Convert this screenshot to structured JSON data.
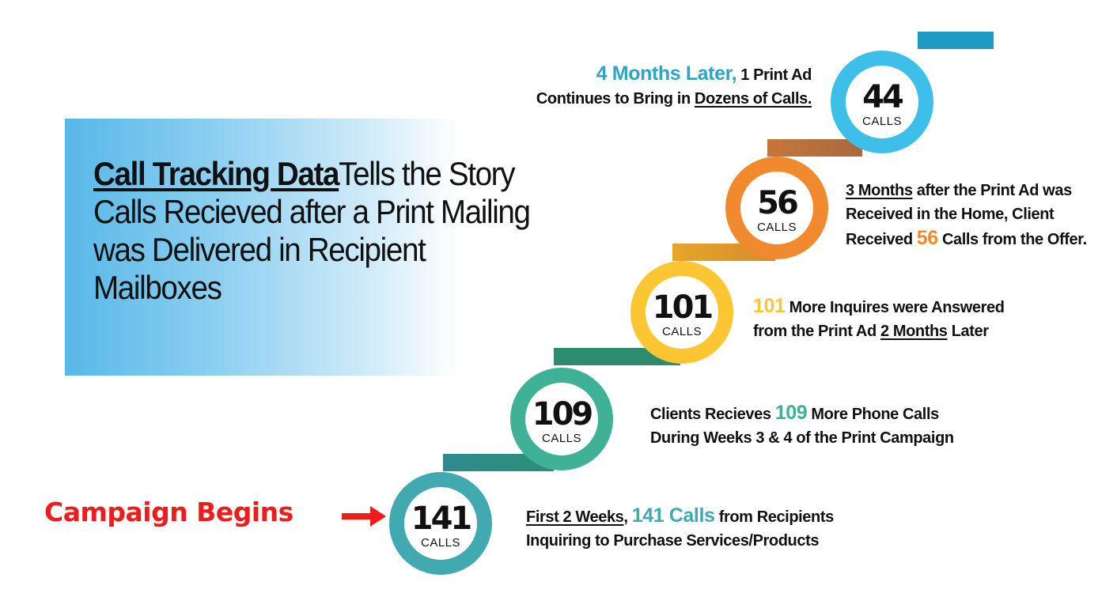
{
  "headline": {
    "emphasis": "Call Tracking Data",
    "line1_rest": "Tells the Story",
    "line2": "Calls Recieved after a Print Mailing",
    "line3": "was Delivered in Recipient",
    "line4": "Mailboxes"
  },
  "start_label": "Campaign Begins",
  "steps": [
    {
      "count": "141",
      "unit": "CALLS",
      "color": "#41a9b0",
      "caption": {
        "a": "First 2 Weeks",
        "b": ", ",
        "hl": "141 Calls",
        "c": " from Recipients",
        "line2": " Inquiring to Purchase Services/Products"
      }
    },
    {
      "count": "109",
      "unit": "CALLS",
      "color": "#3eb196",
      "caption": {
        "a": "Clients Recieves ",
        "hl": "109",
        "b": " More Phone Calls",
        "line2": "During Weeks 3 & 4 of the Print Campaign"
      }
    },
    {
      "count": "101",
      "unit": "CALLS",
      "color": "#fbc631",
      "caption": {
        "hl": "101",
        "a": " More Inquires were Answered",
        "line2a": "from the Print Ad ",
        "line2u": "2 Months",
        "line2b": " Later"
      }
    },
    {
      "count": "56",
      "unit": "CALLS",
      "color": "#f18a2f",
      "caption": {
        "u": "3 Months",
        "a": " after the Print Ad was",
        "line2": "Received in the Home, Client",
        "line3a": "Received ",
        "hl": "56",
        "line3b": " Calls from the Offer."
      }
    },
    {
      "count": "44",
      "unit": "CALLS",
      "color": "#3dbfea",
      "caption": {
        "hl": "4 Months Later,",
        "a": " 1 Print Ad",
        "line2a": "Continues to Bring in ",
        "line2u": "Dozens of Calls."
      }
    }
  ]
}
